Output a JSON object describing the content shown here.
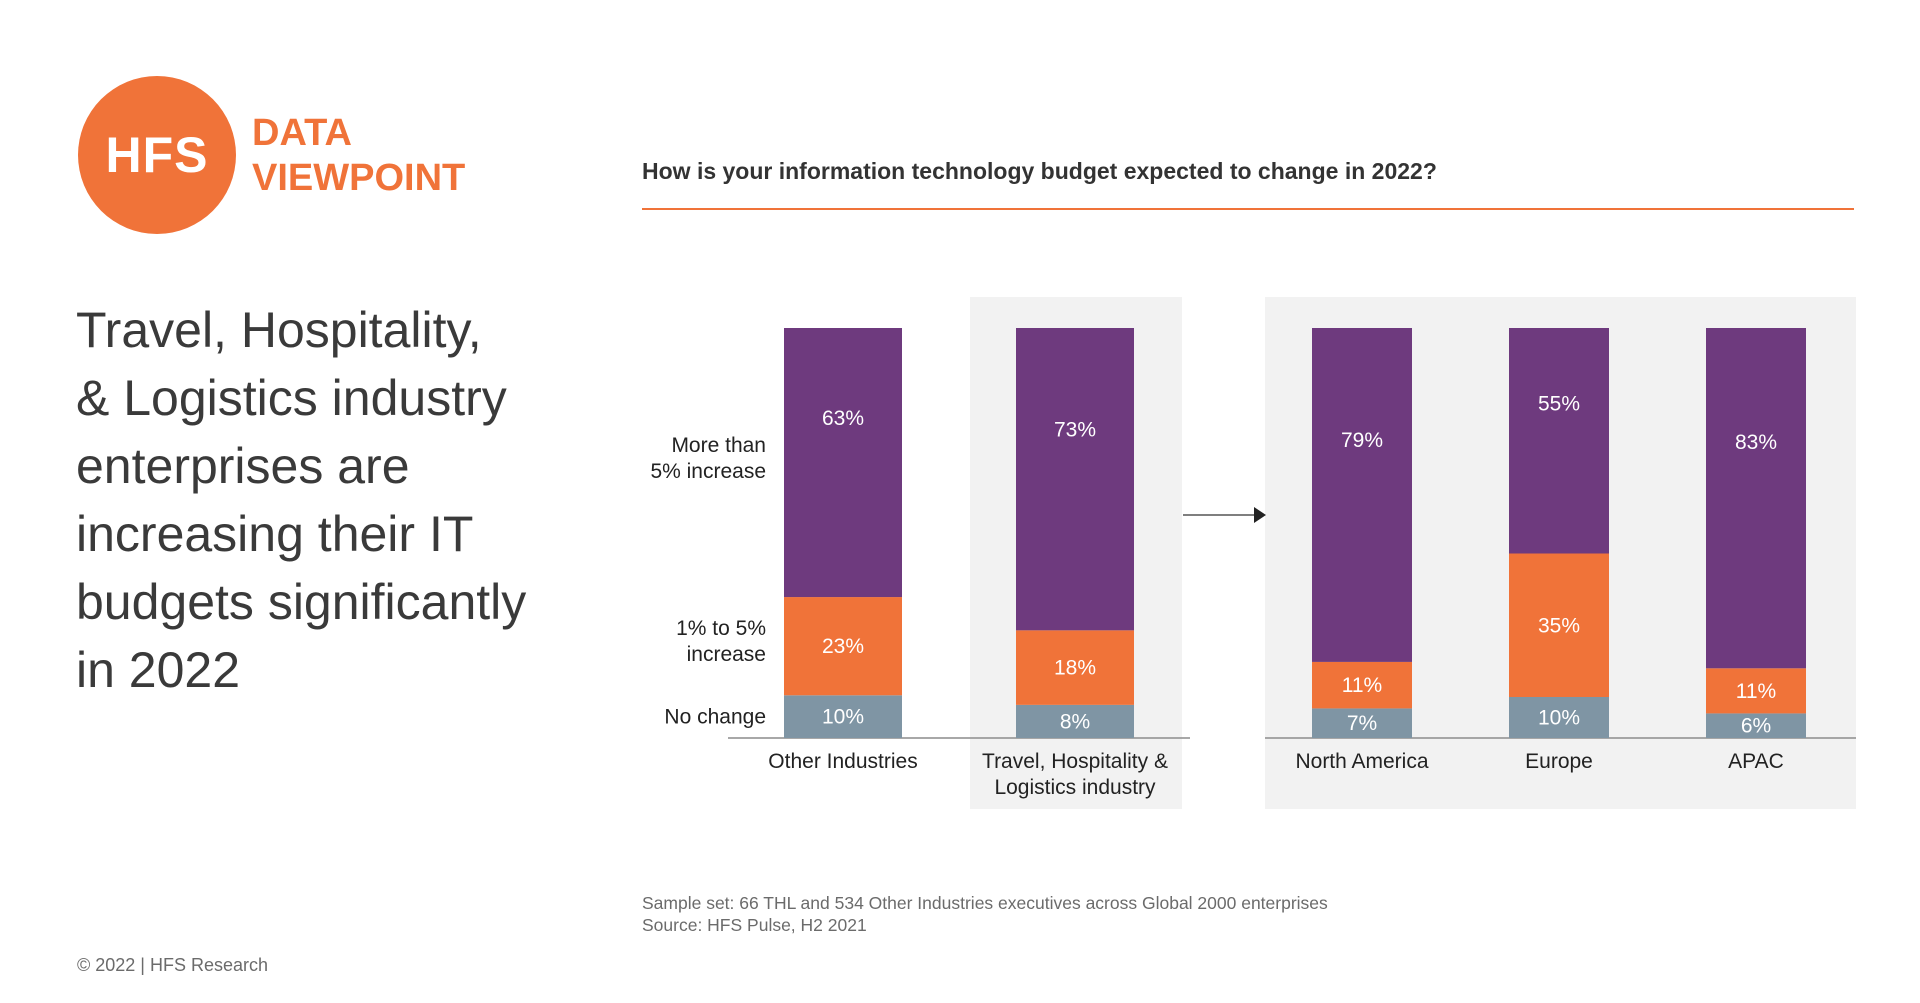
{
  "brand": {
    "logo_text": "HFS",
    "line1": "DATA",
    "line2": "VIEWPOINT",
    "color": "#F07339"
  },
  "headline": {
    "lines": [
      "Travel, Hospitality,",
      "& Logistics industry",
      "enterprises are",
      "increasing their IT",
      "budgets significantly",
      "in 2022"
    ]
  },
  "question": "How is your information technology budget expected to change in 2022?",
  "footnotes": [
    "Sample set: 66 THL and 534 Other Industries executives across Global 2000 enterprises",
    "Source: HFS Pulse, H2 2021"
  ],
  "copyright": "© 2022 | HFS Research",
  "colors": {
    "more_than_5": "#6E3A7E",
    "one_to_5": "#F07339",
    "no_change": "#7F95A4",
    "shade": "#f2f2f2",
    "accent": "#F07339"
  },
  "chart_data": {
    "type": "bar",
    "stacked": true,
    "normalized": true,
    "legend_position": "left",
    "series": [
      {
        "name": "No change",
        "legend_lines": [
          "No change"
        ],
        "values": [
          10,
          8,
          7,
          10,
          6
        ]
      },
      {
        "name": "1% to 5% increase",
        "legend_lines": [
          "1% to 5%",
          "increase"
        ],
        "values": [
          23,
          18,
          11,
          35,
          11
        ]
      },
      {
        "name": "More than 5% increase",
        "legend_lines": [
          "More than",
          "5% increase"
        ],
        "values": [
          63,
          73,
          79,
          55,
          83
        ]
      }
    ],
    "categories": [
      {
        "lines": [
          "Other Industries"
        ]
      },
      {
        "lines": [
          "Travel, Hospitality &",
          "Logistics industry"
        ]
      },
      {
        "lines": [
          "North America"
        ]
      },
      {
        "lines": [
          "Europe"
        ]
      },
      {
        "lines": [
          "APAC"
        ]
      }
    ],
    "value_suffix": "%",
    "breakdown_arrow": {
      "from_category": 1,
      "to_categories": [
        2,
        3,
        4
      ]
    }
  }
}
